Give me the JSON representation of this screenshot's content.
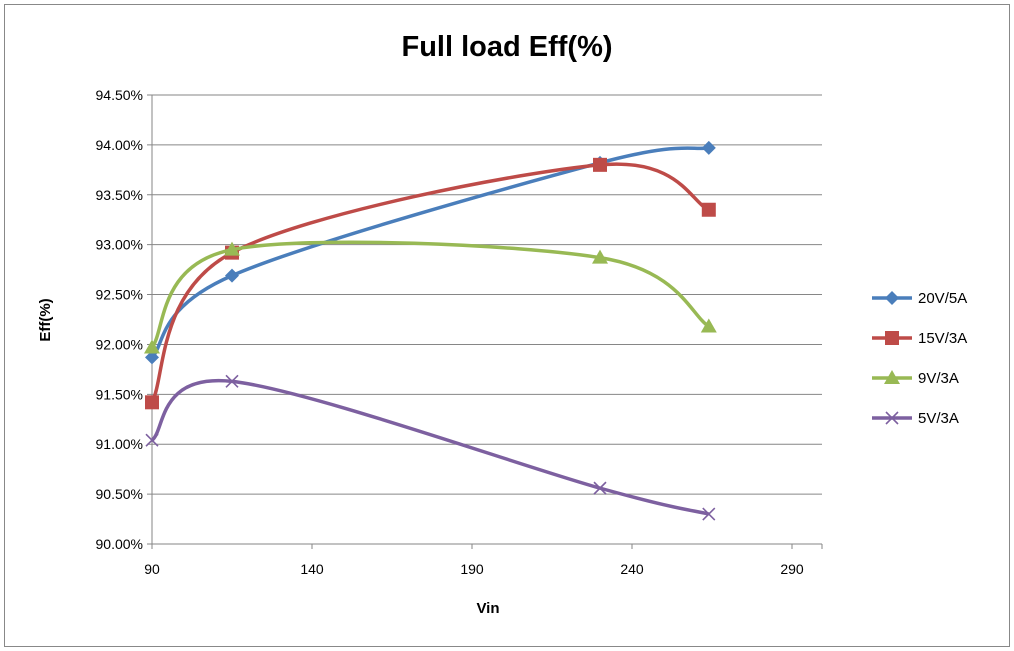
{
  "chart_data": {
    "type": "line",
    "title": "Full load Eff(%)",
    "xlabel": "Vin",
    "ylabel": "Eff(%)",
    "xlim": [
      90,
      290
    ],
    "ylim": [
      90.0,
      94.5
    ],
    "x_ticks": [
      "90",
      "140",
      "190",
      "240",
      "290"
    ],
    "x_tick_values": [
      90,
      140,
      190,
      240,
      290
    ],
    "y_ticks": [
      "90.00%",
      "90.50%",
      "91.00%",
      "91.50%",
      "92.00%",
      "92.50%",
      "93.00%",
      "93.50%",
      "94.00%",
      "94.50%"
    ],
    "y_tick_values": [
      90.0,
      90.5,
      91.0,
      91.5,
      92.0,
      92.5,
      93.0,
      93.5,
      94.0,
      94.5
    ],
    "grid": "horizontal",
    "legend_position": "right",
    "smooth": true,
    "x": [
      90,
      115,
      230,
      264
    ],
    "series": [
      {
        "name": "20V/5A",
        "values": [
          91.87,
          92.69,
          93.82,
          93.97
        ],
        "color": "#4a7ebb",
        "marker": "diamond"
      },
      {
        "name": "15V/3A",
        "values": [
          91.42,
          92.92,
          93.8,
          93.35
        ],
        "color": "#be4b48",
        "marker": "square"
      },
      {
        "name": "9V/3A",
        "values": [
          91.97,
          92.95,
          92.87,
          92.18
        ],
        "color": "#98b954",
        "marker": "triangle"
      },
      {
        "name": "5V/3A",
        "values": [
          91.04,
          91.63,
          90.56,
          90.3
        ],
        "color": "#7d60a0",
        "marker": "x"
      }
    ]
  }
}
